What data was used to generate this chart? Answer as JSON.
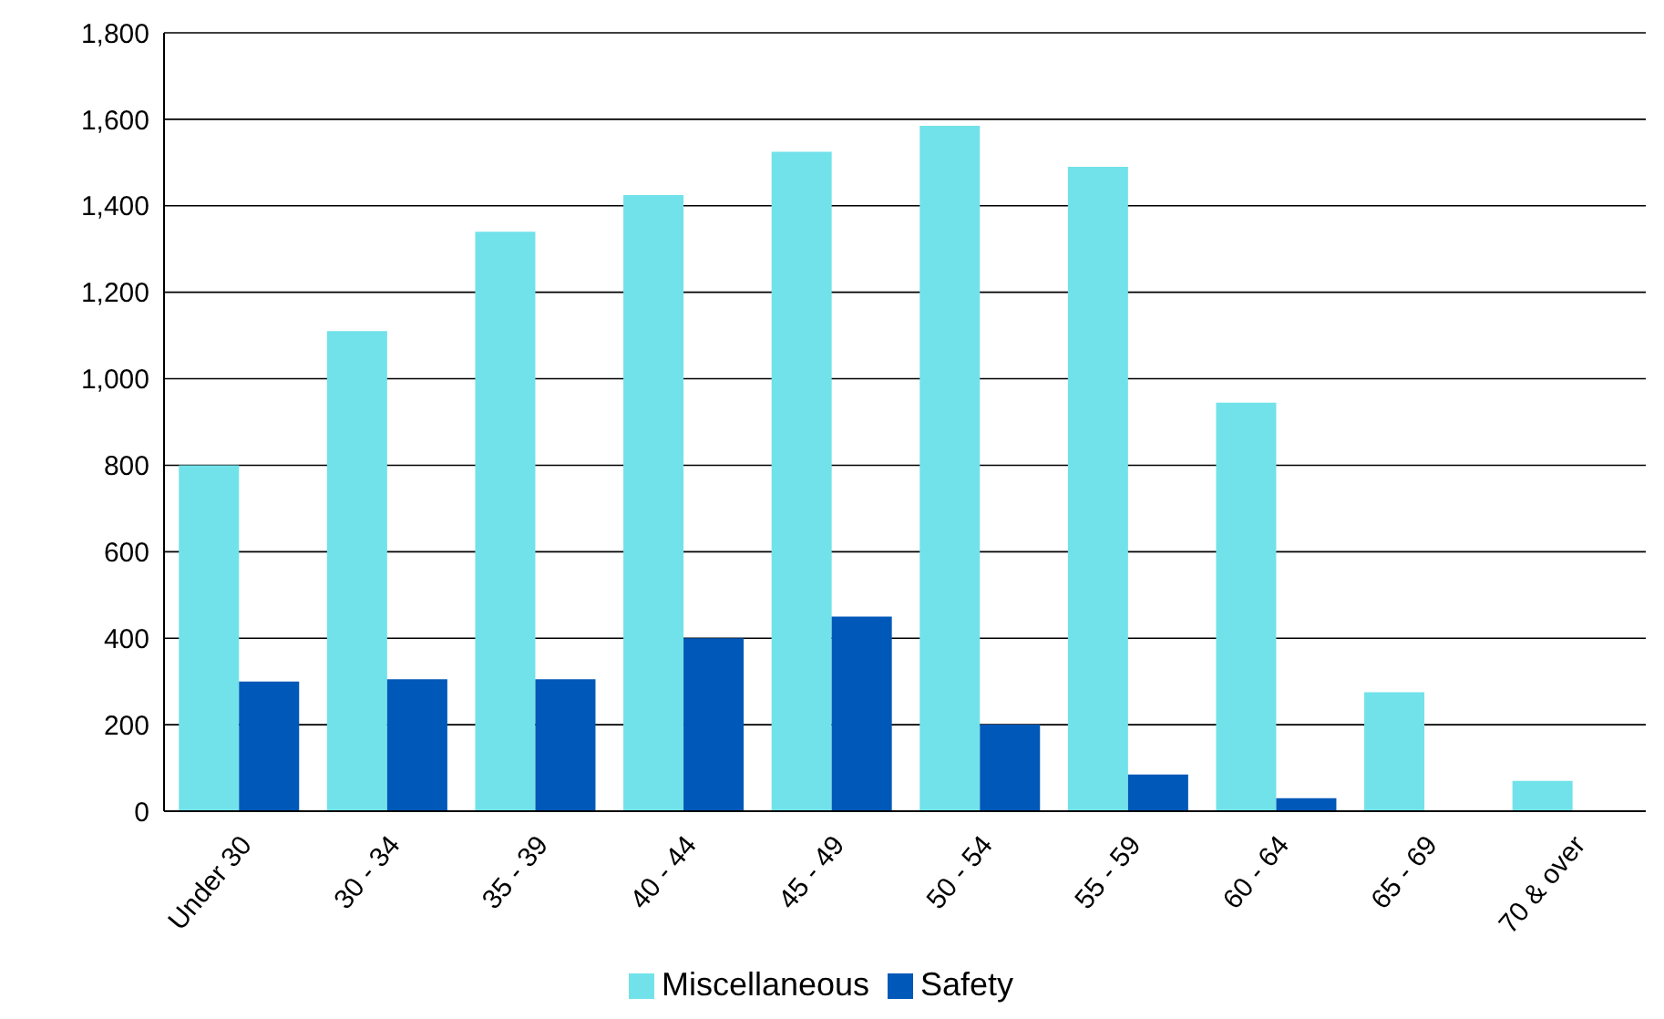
{
  "chart_data": {
    "type": "bar",
    "categories": [
      "Under 30",
      "30 - 34",
      "35 - 39",
      "40 - 44",
      "45 - 49",
      "50 - 54",
      "55 - 59",
      "60 - 64",
      "65 - 69",
      "70 & over"
    ],
    "series": [
      {
        "name": "Miscellaneous",
        "color": "#72e2ea",
        "values": [
          800,
          1110,
          1340,
          1425,
          1525,
          1585,
          1490,
          945,
          275,
          70
        ]
      },
      {
        "name": "Safety",
        "color": "#0058b8",
        "values": [
          300,
          305,
          305,
          400,
          450,
          200,
          85,
          30,
          0,
          0
        ]
      }
    ],
    "ylim": [
      0,
      1800
    ],
    "yticks": [
      0,
      200,
      400,
      600,
      800,
      {
        "value": 1000,
        "label": "1,000"
      },
      {
        "value": 1200,
        "label": "1,200"
      },
      {
        "value": 1400,
        "label": "1,400"
      },
      {
        "value": 1600,
        "label": "1,600"
      },
      {
        "value": 1800,
        "label": "1,800"
      }
    ],
    "grid": "y",
    "legend": "bottom"
  }
}
